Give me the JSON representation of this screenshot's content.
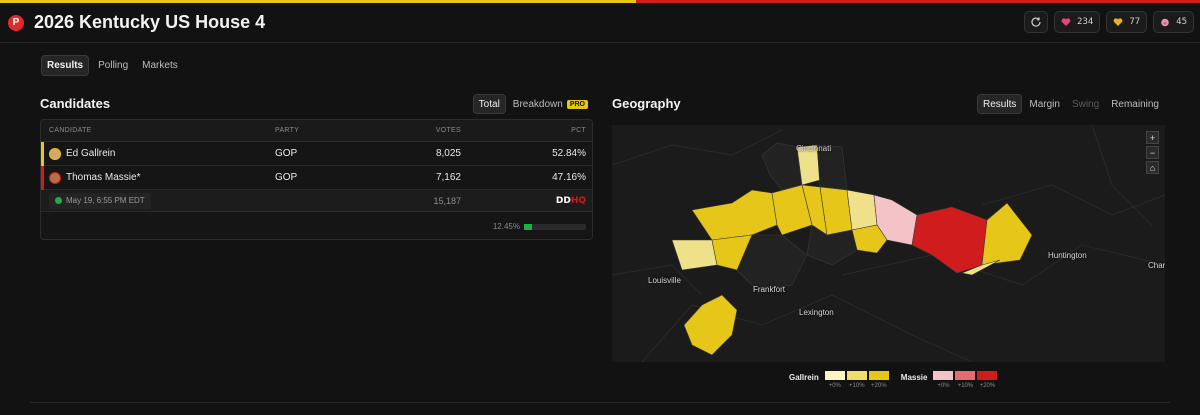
{
  "header": {
    "logo": "P",
    "title": "2026 Kentucky US House 4",
    "reactions": [
      {
        "icon": "heart-icon",
        "count": "234",
        "color": "#e8457a"
      },
      {
        "icon": "yellow-heart-icon",
        "count": "77",
        "color": "#e6b319"
      },
      {
        "icon": "pig-icon",
        "count": "45",
        "color": "#e890b0"
      }
    ]
  },
  "tabs": [
    "Results",
    "Polling",
    "Markets"
  ],
  "candidates": {
    "title": "Candidates",
    "toggle": {
      "total": "Total",
      "breakdown": "Breakdown",
      "pro": "PRO"
    },
    "columns": [
      "CANDIDATE",
      "PARTY",
      "VOTES",
      "PCT"
    ],
    "rows": [
      {
        "name": "Ed Gallrein",
        "party": "GOP",
        "votes": "8,025",
        "pct": "52.84%",
        "color": "#e6c619"
      },
      {
        "name": "Thomas Massie*",
        "party": "GOP",
        "votes": "7,162",
        "pct": "47.16%",
        "color": "#d01c1c"
      }
    ],
    "timestamp": "May 19, 6:55 PM EDT",
    "total_votes": "15,187",
    "source": {
      "a": "DD",
      "b": "HQ"
    },
    "reporting": {
      "label": "12.45%",
      "value": 0.1245
    }
  },
  "geography": {
    "title": "Geography",
    "modes": [
      "Results",
      "Margin",
      "Swing",
      "Remaining"
    ],
    "places": [
      "Cincinnati",
      "Huntington",
      "Louisville",
      "Frankfort",
      "Lexington",
      "Char"
    ],
    "map_controls": [
      "+",
      "−",
      "⌂"
    ]
  },
  "legend": {
    "gallrein": {
      "label": "Gallrein",
      "colors": [
        "#fbf3c2",
        "#f0dc6a",
        "#e6c619"
      ]
    },
    "massie": {
      "label": "Massie",
      "colors": [
        "#f4c3c8",
        "#e26d72",
        "#d01c1c"
      ]
    },
    "ticks": [
      "+0%",
      "+10%",
      "+20%"
    ]
  }
}
